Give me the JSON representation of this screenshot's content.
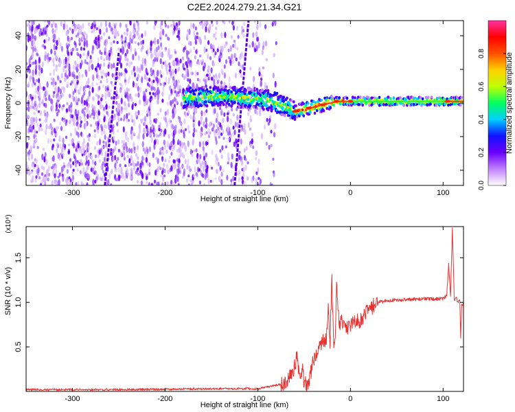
{
  "title": "C2E2.2024.279.21.34.G21",
  "chart_data": [
    {
      "type": "heatmap",
      "xlabel": "Height of straight line (km)",
      "ylabel": "Frequency (Hz)",
      "xlim": [
        -350,
        122
      ],
      "ylim": [
        -49,
        49
      ],
      "x_ticks": [
        -300,
        -200,
        -100,
        0,
        100
      ],
      "y_ticks": [
        -40,
        -20,
        0,
        20,
        40
      ],
      "colorbar": {
        "label": "Normalized spectral amplitude",
        "range": [
          0,
          1
        ],
        "ticks": [
          "0.0",
          "0.2",
          "0.4",
          "0.6",
          "0.8"
        ],
        "tick_values": [
          0,
          0.2,
          0.4,
          0.6,
          0.8
        ],
        "colors": [
          "#ffffff",
          "#c080ff",
          "#6a00ff",
          "#1010ff",
          "#00d0ff",
          "#00ff60",
          "#c0ff00",
          "#ffd000",
          "#ff5000",
          "#ff0000",
          "#ff30a0"
        ]
      },
      "features": {
        "noise_region_x": [
          -350,
          -105
        ],
        "diagonal_streaks": [
          {
            "x": [
              -265,
              -250
            ],
            "y": [
              -49,
              30
            ]
          },
          {
            "x": [
              -125,
              -110
            ],
            "y": [
              -49,
              49
            ]
          }
        ],
        "signal_line": {
          "x": [
            -180,
            -140,
            -110,
            -90,
            -75,
            -60,
            -45,
            -30,
            -15,
            0,
            50,
            100,
            122
          ],
          "y": [
            3,
            4,
            3,
            2,
            -1,
            -5,
            -3,
            -1,
            1,
            1,
            1,
            1,
            1
          ]
        }
      }
    },
    {
      "type": "line",
      "xlabel": "Height of straight line (km)",
      "ylabel": "SNR (10 * v/v)",
      "multiplier_label": "(x10⁴)",
      "xlim": [
        -350,
        122
      ],
      "ylim": [
        0,
        1.85
      ],
      "x_ticks": [
        -300,
        -200,
        -100,
        0,
        100
      ],
      "y_ticks": [
        0.5,
        1.0,
        1.5
      ],
      "y_tick_labels": [
        "0.5",
        "1.0",
        "1.5"
      ],
      "line_color": "#e8312f",
      "series": [
        {
          "x": [
            -350,
            -250,
            -150,
            -100,
            -75,
            -62,
            -58,
            -55,
            -52,
            -50,
            -46,
            -44,
            -42,
            -40,
            -35,
            -30,
            -26,
            -24,
            -22,
            -20,
            -18,
            -16,
            -15,
            -12,
            -10,
            -5,
            0,
            10,
            20,
            30,
            40,
            60,
            80,
            100,
            104,
            106,
            108,
            110,
            112,
            114,
            116,
            118,
            119,
            120,
            122
          ],
          "y": [
            0.02,
            0.02,
            0.03,
            0.03,
            0.08,
            0.18,
            0.4,
            0.2,
            0.26,
            0.1,
            0.05,
            0.15,
            0.25,
            0.35,
            0.45,
            0.55,
            0.6,
            0.9,
            0.55,
            1.25,
            0.5,
            0.7,
            1.2,
            0.75,
            0.8,
            0.7,
            0.75,
            0.8,
            0.92,
            1.0,
            1.02,
            1.03,
            1.04,
            1.04,
            1.08,
            1.45,
            1.05,
            1.85,
            1.02,
            1.05,
            1.0,
            1.02,
            0.6,
            0.97,
            0.98
          ]
        }
      ]
    }
  ]
}
